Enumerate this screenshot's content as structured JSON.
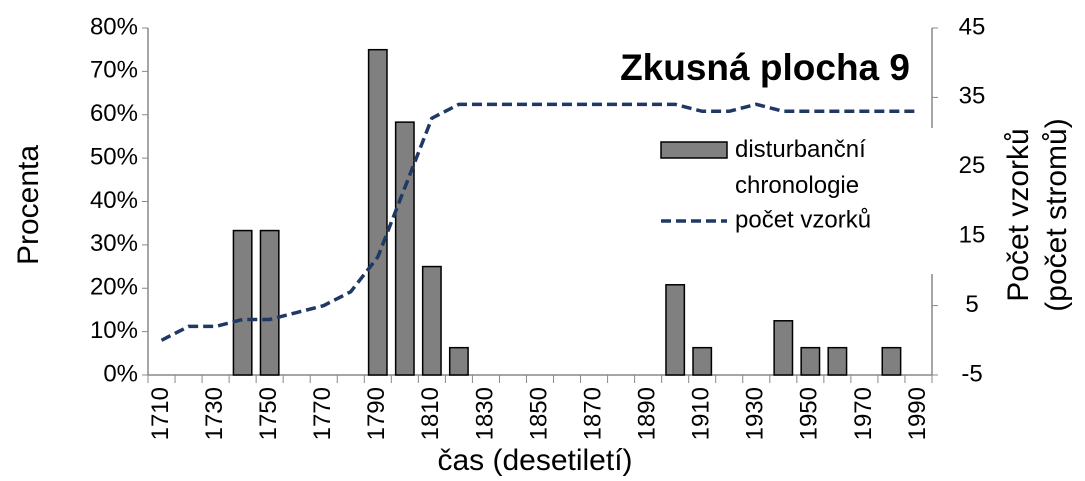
{
  "chart_data": {
    "type": "bar_line",
    "title": "Zkusná plocha 9",
    "xlabel": "čas (desetiletí)",
    "ylabel": "Procenta",
    "y2label": [
      "Počet vzorků",
      "(počet stromů)"
    ],
    "categories": [
      "1710",
      null,
      "1730",
      null,
      "1750",
      null,
      "1770",
      null,
      "1790",
      null,
      "1810",
      null,
      "1830",
      null,
      "1850",
      null,
      "1870",
      null,
      "1890",
      null,
      "1910",
      null,
      "1930",
      null,
      "1950",
      null,
      "1970",
      null,
      "1990"
    ],
    "series": [
      {
        "name": "disturbanční chronologie",
        "type": "bar",
        "color": "#808080",
        "axis": "y",
        "values": [
          0,
          0,
          0,
          33.3,
          33.3,
          0,
          0,
          0,
          75,
          58.3,
          25,
          6.3,
          0,
          0,
          0,
          0,
          0,
          0,
          0,
          20.8,
          6.3,
          0,
          0,
          12.5,
          6.3,
          6.3,
          0,
          6.3,
          0
        ]
      },
      {
        "name": "počet vzorků",
        "type": "line",
        "color": "#1f3864",
        "axis": "y2",
        "values": [
          0,
          2,
          2,
          3,
          3,
          4,
          5,
          7,
          12,
          22,
          32,
          34,
          34,
          34,
          34,
          34,
          34,
          34,
          34,
          34,
          33,
          33,
          34,
          33,
          33,
          33,
          33,
          33,
          33
        ]
      }
    ],
    "ylim": [
      0,
      80
    ],
    "yticks": [
      {
        "value": 0,
        "label": "0%"
      },
      {
        "value": 10,
        "label": "10%"
      },
      {
        "value": 20,
        "label": "20%"
      },
      {
        "value": 30,
        "label": "30%"
      },
      {
        "value": 40,
        "label": "40%"
      },
      {
        "value": 50,
        "label": "50%"
      },
      {
        "value": 60,
        "label": "60%"
      },
      {
        "value": 70,
        "label": "70%"
      },
      {
        "value": 80,
        "label": "80%"
      }
    ],
    "y2lim": [
      -5,
      45
    ],
    "y2ticks": [
      -5,
      5,
      15,
      25,
      35,
      45
    ],
    "legend": "right"
  }
}
